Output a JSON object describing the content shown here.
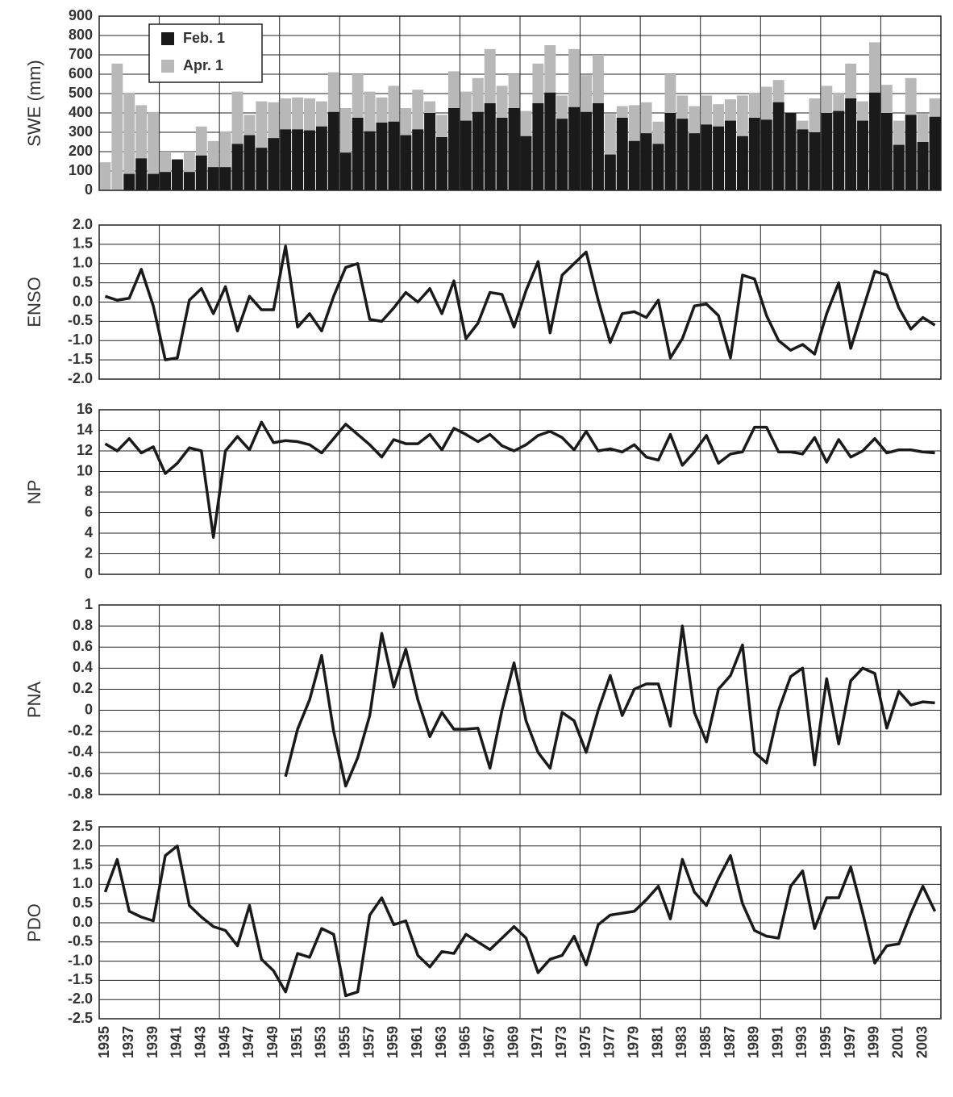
{
  "chart_data": [
    {
      "type": "bar",
      "ylabel": "SWE (mm)",
      "legend": "upper left",
      "series": [
        {
          "name": "Feb. 1",
          "color": "#1a1a1a",
          "values": [
            0,
            0,
            85,
            165,
            85,
            95,
            160,
            95,
            180,
            120,
            120,
            240,
            285,
            220,
            270,
            315,
            315,
            310,
            330,
            405,
            195,
            375,
            305,
            350,
            355,
            285,
            315,
            400,
            275,
            425,
            360,
            405,
            450,
            375,
            425,
            280,
            450,
            505,
            370,
            430,
            405,
            450,
            185,
            375,
            255,
            295,
            240,
            400,
            370,
            295,
            340,
            330,
            360,
            280,
            375,
            365,
            455,
            400,
            315,
            300,
            400,
            410,
            475,
            360,
            505,
            400,
            235,
            390,
            250,
            380
          ]
        },
        {
          "name": "Apr. 1",
          "color": "#b8b8b8",
          "values": [
            145,
            655,
            505,
            440,
            405,
            200,
            150,
            200,
            330,
            255,
            305,
            510,
            390,
            460,
            455,
            475,
            480,
            475,
            460,
            610,
            425,
            600,
            510,
            480,
            540,
            425,
            520,
            460,
            390,
            615,
            510,
            580,
            730,
            540,
            600,
            410,
            655,
            750,
            490,
            730,
            595,
            700,
            395,
            435,
            440,
            455,
            355,
            600,
            490,
            435,
            490,
            445,
            470,
            490,
            505,
            535,
            570,
            390,
            360,
            475,
            540,
            505,
            655,
            460,
            765,
            545,
            360,
            580,
            395,
            475
          ]
        }
      ],
      "ylim": [
        0,
        900
      ],
      "yticks": [
        0,
        100,
        200,
        300,
        400,
        500,
        600,
        700,
        800,
        900
      ],
      "grid": true
    },
    {
      "type": "line",
      "ylabel": "ENSO",
      "series": [
        {
          "color": "#1a1a1a",
          "values": [
            0.15,
            0.05,
            0.1,
            0.85,
            -0.1,
            -1.5,
            -1.45,
            0.05,
            0.35,
            -0.3,
            0.4,
            -0.75,
            0.15,
            -0.2,
            -0.2,
            1.45,
            -0.65,
            -0.3,
            -0.75,
            0.15,
            0.9,
            1.0,
            -0.45,
            -0.5,
            -0.15,
            0.25,
            0.0,
            0.35,
            -0.3,
            0.55,
            -0.95,
            -0.55,
            0.25,
            0.2,
            -0.65,
            0.3,
            1.05,
            -0.8,
            0.7,
            1.0,
            1.3,
            0.05,
            -1.05,
            -0.3,
            -0.25,
            -0.4,
            0.05,
            -1.45,
            -0.95,
            -0.1,
            -0.05,
            -0.35,
            -1.45,
            0.7,
            0.6,
            -0.35,
            -1.0,
            -1.25,
            -1.1,
            -1.35,
            -0.3,
            0.5,
            -1.2,
            -0.2,
            0.8,
            0.7,
            -0.15,
            -0.7,
            -0.4,
            -0.6
          ]
        }
      ],
      "ylim": [
        -2,
        2
      ],
      "yticks": [
        {
          "value": -2,
          "label": "-2.0"
        },
        -1.5,
        {
          "value": -1,
          "label": "-1.0"
        },
        -0.5,
        {
          "value": 0,
          "label": "0.0"
        },
        0.5,
        {
          "value": 1,
          "label": "1.0"
        },
        1.5,
        {
          "value": 2,
          "label": "2.0"
        }
      ],
      "grid": true
    },
    {
      "type": "line",
      "ylabel": "NP",
      "series": [
        {
          "color": "#1a1a1a",
          "values": [
            12.7,
            12.0,
            13.2,
            11.8,
            12.4,
            9.8,
            10.8,
            12.3,
            12.0,
            3.6,
            12.0,
            13.4,
            12.1,
            14.8,
            12.8,
            13.0,
            12.9,
            12.6,
            11.8,
            13.2,
            14.6,
            13.6,
            12.6,
            11.4,
            13.1,
            12.7,
            12.7,
            13.6,
            12.1,
            14.2,
            13.6,
            12.9,
            13.6,
            12.5,
            12.0,
            12.6,
            13.5,
            13.9,
            13.3,
            12.1,
            13.9,
            12.0,
            12.2,
            11.9,
            12.6,
            11.4,
            11.1,
            13.6,
            10.6,
            11.9,
            13.5,
            10.8,
            11.7,
            11.9,
            14.3,
            14.3,
            11.9,
            11.9,
            11.7,
            13.3,
            10.9,
            13.1,
            11.4,
            12.0,
            13.2,
            11.8,
            12.1,
            12.1,
            11.9,
            11.8
          ]
        }
      ],
      "ylim": [
        0,
        16
      ],
      "yticks": [
        0,
        2,
        4,
        6,
        8,
        10,
        12,
        14,
        16
      ],
      "grid": true
    },
    {
      "type": "line",
      "ylabel": "PNA",
      "series": [
        {
          "color": "#1a1a1a",
          "values": [
            null,
            null,
            null,
            null,
            null,
            null,
            null,
            null,
            null,
            null,
            null,
            null,
            null,
            null,
            null,
            -0.63,
            -0.18,
            0.1,
            0.52,
            -0.2,
            -0.72,
            -0.45,
            -0.05,
            0.73,
            0.22,
            0.58,
            0.1,
            -0.25,
            -0.02,
            -0.18,
            -0.18,
            -0.17,
            -0.55,
            0.0,
            0.45,
            -0.1,
            -0.4,
            -0.55,
            -0.02,
            -0.1,
            -0.4,
            0.0,
            0.33,
            -0.05,
            0.2,
            0.25,
            0.25,
            -0.15,
            0.8,
            -0.02,
            -0.3,
            0.2,
            0.33,
            0.62,
            -0.4,
            -0.5,
            0.0,
            0.32,
            0.4,
            -0.52,
            0.3,
            -0.32,
            0.28,
            0.4,
            0.35,
            -0.17,
            0.18,
            0.05,
            0.08,
            0.07
          ]
        }
      ],
      "ylim": [
        -0.8,
        1
      ],
      "yticks": [
        -0.8,
        -0.6,
        -0.4,
        -0.2,
        0,
        0.2,
        0.4,
        0.6,
        0.8,
        1
      ],
      "grid": true
    },
    {
      "type": "line",
      "ylabel": "PDO",
      "categories": [
        "1935",
        null,
        "1937",
        null,
        "1939",
        null,
        "1941",
        null,
        "1943",
        null,
        "1945",
        null,
        "1947",
        null,
        "1949",
        null,
        "1951",
        null,
        "1953",
        null,
        "1955",
        null,
        "1957",
        null,
        "1959",
        null,
        "1961",
        null,
        "1963",
        null,
        "1965",
        null,
        "1967",
        null,
        "1969",
        null,
        "1971",
        null,
        "1973",
        null,
        "1975",
        null,
        "1977",
        null,
        "1979",
        null,
        "1981",
        null,
        "1983",
        null,
        "1985",
        null,
        "1987",
        null,
        "1989",
        null,
        "1991",
        null,
        "1993",
        null,
        "1995",
        null,
        "1997",
        null,
        "1999",
        null,
        "2001",
        null,
        "2003",
        null
      ],
      "series": [
        {
          "color": "#1a1a1a",
          "values": [
            0.8,
            1.65,
            0.3,
            0.15,
            0.05,
            1.75,
            2.0,
            0.45,
            0.15,
            -0.1,
            -0.2,
            -0.6,
            0.45,
            -0.95,
            -1.25,
            -1.8,
            -0.8,
            -0.9,
            -0.15,
            -0.3,
            -1.9,
            -1.8,
            0.2,
            0.65,
            -0.05,
            0.05,
            -0.85,
            -1.15,
            -0.75,
            -0.8,
            -0.3,
            -0.5,
            -0.7,
            -0.4,
            -0.1,
            -0.4,
            -1.3,
            -0.95,
            -0.85,
            -0.35,
            -1.1,
            -0.05,
            0.2,
            0.25,
            0.3,
            0.6,
            0.95,
            0.1,
            1.65,
            0.8,
            0.45,
            1.15,
            1.75,
            0.5,
            -0.2,
            -0.35,
            -0.4,
            0.95,
            1.35,
            -0.15,
            0.65,
            0.65,
            1.45,
            0.25,
            -1.05,
            -0.6,
            -0.55,
            0.25,
            0.95,
            0.3
          ]
        }
      ],
      "ylim": [
        -2.5,
        2.5
      ],
      "yticks": [
        -2.5,
        {
          "value": -2,
          "label": "-2.0"
        },
        -1.5,
        {
          "value": -1,
          "label": "-1.0"
        },
        -0.5,
        {
          "value": 0,
          "label": "0.0"
        },
        0.5,
        {
          "value": 1,
          "label": "1.0"
        },
        1.5,
        {
          "value": 2,
          "label": "2.0"
        },
        2.5
      ],
      "grid": true
    }
  ]
}
